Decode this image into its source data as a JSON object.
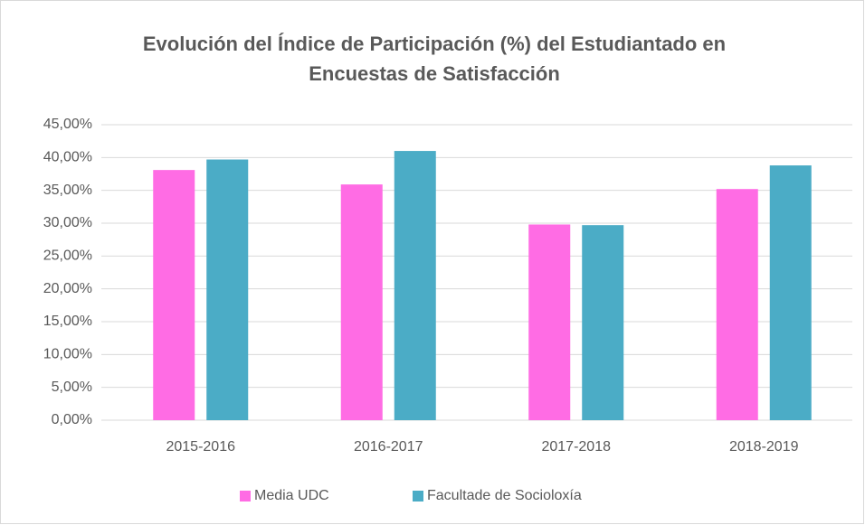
{
  "chart_data": {
    "type": "bar",
    "title": "Evolución del Índice de Participación (%) del Estudiantado en Encuestas de Satisfacción",
    "categories": [
      "2015-2016",
      "2016-2017",
      "2017-2018",
      "2018-2019"
    ],
    "series": [
      {
        "name": "Media UDC",
        "color": "#ff6ce4",
        "values": [
          38.1,
          35.9,
          29.8,
          35.2
        ]
      },
      {
        "name": "Facultade de Socioloxía",
        "color": "#4bacc6",
        "values": [
          39.7,
          41.0,
          29.7,
          38.8
        ]
      }
    ],
    "ylim": [
      0,
      45
    ],
    "yticks": [
      {
        "value": 0,
        "label": "0,00%"
      },
      {
        "value": 5,
        "label": "5,00%"
      },
      {
        "value": 10,
        "label": "10,00%"
      },
      {
        "value": 15,
        "label": "15,00%"
      },
      {
        "value": 20,
        "label": "20,00%"
      },
      {
        "value": 25,
        "label": "25,00%"
      },
      {
        "value": 30,
        "label": "30,00%"
      },
      {
        "value": 35,
        "label": "35,00%"
      },
      {
        "value": 40,
        "label": "40,00%"
      },
      {
        "value": 45,
        "label": "45,00%"
      }
    ],
    "grid": true,
    "legend": "bottom"
  }
}
